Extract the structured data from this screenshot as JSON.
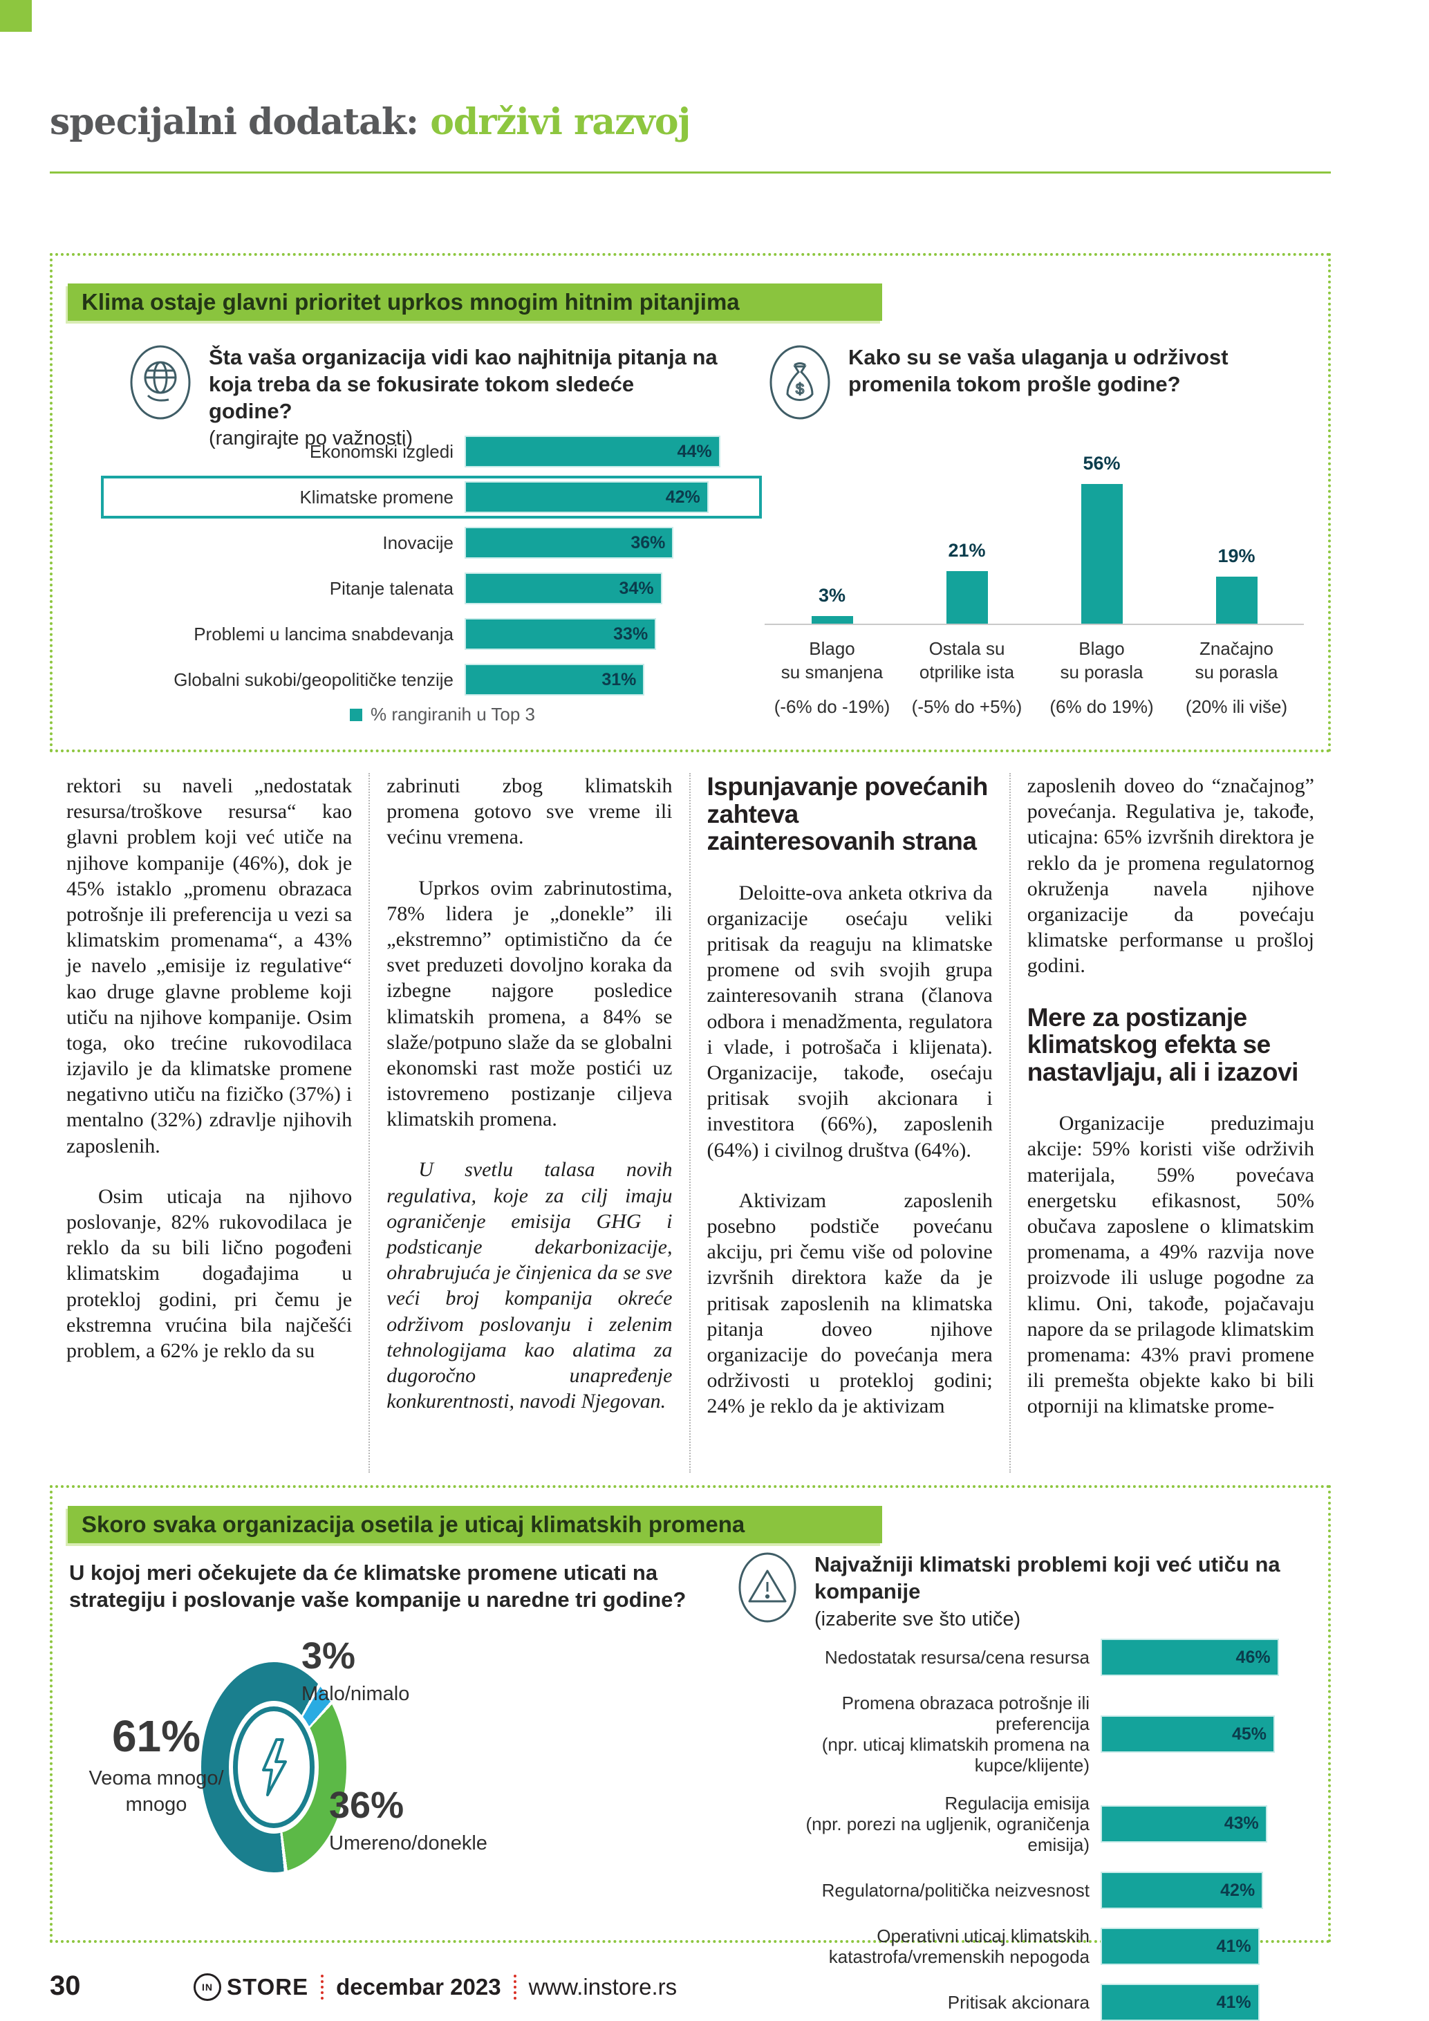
{
  "header": {
    "prefix": "specijalni dodatak:",
    "accent": "održivi razvoj"
  },
  "section1": {
    "title": "Klima ostaje glavni prioritet uprkos mnogim hitnim pitanjima",
    "question1": {
      "text": "Šta vaša organizacija vidi kao najhitnija pitanja na koja treba da se fokusirate tokom sledeće godine?",
      "note": "(rangirajte po važnosti)"
    },
    "question2": {
      "text": "Kako su se vaša ulaganja u održivost promenila tokom prošle godine?"
    },
    "legend": "% rangiranih u Top 3"
  },
  "section2": {
    "title": "Skoro svaka organizacija osetila je uticaj klimatskih promena",
    "question1": "U kojoj meri očekujete da će klimatske promene uticati na strategiju i poslovanje vaše kompanije u naredne tri godine?",
    "question2": {
      "title": "Najvažniji klimatski problemi koji već utiču na kompanije",
      "note": "(izaberite sve što utiče)"
    },
    "donut_labels": [
      {
        "pct": "61%",
        "label": "Veoma mnogo/\nmnogo"
      },
      {
        "pct": "3%",
        "label": "Malo/nimalo"
      },
      {
        "pct": "36%",
        "label": "Umereno/donekle"
      }
    ]
  },
  "article": {
    "columns": [
      [
        {
          "type": "p",
          "text": "rektori su naveli „nedostatak resursa/troškove resursa“ kao glavni problem koji već utiče na njihove kompanije (46%), dok je 45% istaklo „promenu obrazaca potrošnje ili preferencija u vezi sa klimatskim promenama“, a 43% je navelo „emisije iz regulative“ kao druge glavne probleme koji utiču na njihove kompanije. Osim toga, oko trećine rukovodilaca izjavilo je da klimatske promene negativno utiču na fizičko (37%) i mentalno (32%) zdravlje njihovih zaposlenih."
        },
        {
          "type": "p",
          "indent": true,
          "text": "Osim uticaja na njihovo poslovanje, 82% rukovodilaca je reklo da su bili lično pogođeni klimatskim događajima u protekloj godini, pri čemu je ekstremna vrućina bila najčešći problem, a 62% je reklo da su"
        }
      ],
      [
        {
          "type": "p",
          "text": "zabrinuti zbog klimatskih promena gotovo sve vreme ili većinu vremena."
        },
        {
          "type": "p",
          "indent": true,
          "text": "Uprkos ovim zabrinutostima, 78% lidera je „donekle” ili „ekstremno” optimistično da će svet preduzeti dovoljno koraka da izbegne najgore posledice klimatskih promena, a 84% se slaže/potpuno slaže da se globalni ekonomski rast može postići uz istovremeno postizanje ciljeva klimatskih promena."
        },
        {
          "type": "p",
          "indent": true,
          "italic": true,
          "text": "U svetlu talasa novih regulativa, koje za cilj imaju ograničenje emisija GHG i podsticanje dekarbonizacije, ohrabrujuća je činjenica da se sve veći broj kompanija okreće održivom poslovanju i zelenim tehnologijama kao alatima za dugoročno unapređenje konkurentnosti, navodi Njegovan."
        }
      ],
      [
        {
          "type": "h",
          "text": "Ispunjavanje povećanih zahteva zainteresovanih strana"
        },
        {
          "type": "p",
          "indent": true,
          "text": "Deloitte-ova anketa otkriva da organizacije osećaju veliki pritisak da reaguju na klimatske promene od svih svojih grupa zainteresovanih strana (članova odbora i menadžmenta, regulatora i vlade, i potrošača i klijenata). Organizacije, takođe, osećaju pritisak svojih akcionara i investitora (66%), zaposlenih (64%) i civilnog društva (64%)."
        },
        {
          "type": "p",
          "indent": true,
          "text": "Aktivizam zaposlenih posebno podstiče povećanu akciju, pri čemu više od polovine izvršnih direktora kaže da je pritisak zaposlenih na klimatska pitanja doveo njihove organizacije do povećanja mera održivosti u protekloj godini; 24% je reklo da je aktivizam"
        }
      ],
      [
        {
          "type": "p",
          "text": "zaposlenih doveo do “značajnog” povećanja. Regulativa je, takođe, uticajna: 65% izvršnih direktora je reklo da je promena regulatornog okruženja navela njihove organizacije da povećaju klimatske performanse u prošloj godini."
        },
        {
          "type": "h",
          "text": "Mere za postizanje klimatskog efekta se nastavljaju, ali i izazovi"
        },
        {
          "type": "p",
          "indent": true,
          "text": "Organizacije preduzimaju akcije: 59% koristi više održivih materijala, 59% povećava energetsku efikasnost, 50% obučava zaposlene o klimatskim promenama, a 49% razvija nove proizvode ili usluge pogodne za klimu. Oni, takođe, pojačavaju napore da se prilagode klimatskim promenama: 43% pravi promene ili premešta objekte kako bi bili otporniji na klimatske prome-"
        }
      ]
    ]
  },
  "footer": {
    "page": "30",
    "brand_mark": "IN",
    "brand": "STORE",
    "date": "decembar 2023",
    "url": "www.instore.rs"
  },
  "colors": {
    "accent_green": "#8dc63f",
    "bar_teal": "#14a39b",
    "value_navy": "#0b3c4c",
    "donut_teal": "#1a7f8e",
    "donut_blue": "#2aabe2",
    "donut_green": "#5cb947",
    "header_gray": "#58595b",
    "footer_red": "#d93025"
  },
  "chart_data": [
    {
      "id": "priorities",
      "type": "bar",
      "orientation": "horizontal",
      "title": "Šta vaša organizacija vidi kao najhitnija pitanja na koja treba da se fokusirate tokom sledeće godine? (rangirajte po važnosti)",
      "categories": [
        "Ekonomski izgledi",
        "Klimatske promene",
        "Inovacije",
        "Pitanje talenata",
        "Problemi u lancima snabdevanja",
        "Globalni sukobi/geopolitičke tenzije"
      ],
      "values": [
        44,
        42,
        36,
        34,
        33,
        31
      ],
      "highlight_index": 1,
      "legend": "% rangiranih u Top 3",
      "xmax": 50,
      "grid": false
    },
    {
      "id": "investments",
      "type": "bar",
      "orientation": "vertical",
      "title": "Kako su se vaša ulaganja u održivost promenila tokom prošle godine?",
      "categories": [
        [
          "Blago",
          "su smanjena"
        ],
        [
          "Ostala su",
          "otprilike ista"
        ],
        [
          "Blago",
          "su porasla"
        ],
        [
          "Značajno",
          "su porasla"
        ]
      ],
      "ranges": [
        "(-6% do -19%)",
        "(-5% do +5%)",
        "(6% do 19%)",
        "(20% ili više)"
      ],
      "values": [
        3,
        21,
        56,
        19
      ],
      "ymax": 60,
      "grid": false
    },
    {
      "id": "impact",
      "type": "pie",
      "title": "U kojoj meri očekujete da će klimatske promene uticati na strategiju i poslovanje vaše kompanije u naredne tri godine?",
      "slices": [
        {
          "label": "Veoma mnogo/mnogo",
          "value": 61,
          "color": "#1a7f8e"
        },
        {
          "label": "Malo/nimalo",
          "value": 3,
          "color": "#2aabe2"
        },
        {
          "label": "Umereno/donekle",
          "value": 36,
          "color": "#5cb947"
        }
      ]
    },
    {
      "id": "issues",
      "type": "bar",
      "orientation": "horizontal",
      "title": "Najvažniji klimatski problemi koji već utiču na kompanije (izaberite sve što utiče)",
      "categories": [
        [
          "Nedostatak resursa/cena resursa"
        ],
        [
          "Promena obrazaca potrošnje ili preferencija",
          "(npr. uticaj klimatskih promena na kupce/klijente)"
        ],
        [
          "Regulacija emisija",
          "(npr. porezi na ugljenik, ograničenja emisija)"
        ],
        [
          "Regulatorna/politička neizvesnost"
        ],
        [
          "Operativni uticaj klimatskih",
          "katastrofa/vremenskih nepogoda"
        ],
        [
          "Pritisak akcionara"
        ]
      ],
      "values": [
        46,
        45,
        43,
        42,
        41,
        41
      ],
      "xmax": 50,
      "grid": false
    }
  ]
}
